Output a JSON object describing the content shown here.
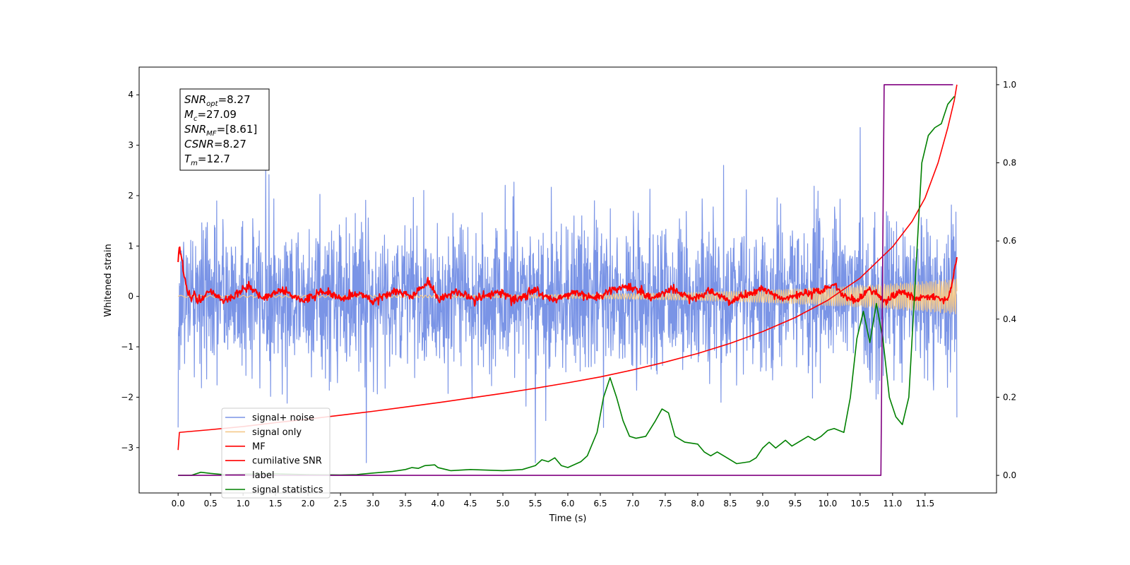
{
  "chart_data": {
    "type": "line",
    "xlabel": "Time (s)",
    "ylabel": "Whitened strain",
    "x_ticks": [
      "0.0",
      "0.5",
      "1.0",
      "1.5",
      "2.0",
      "2.5",
      "3.0",
      "3.5",
      "4.0",
      "4.5",
      "5.0",
      "5.5",
      "6.0",
      "6.5",
      "7.0",
      "7.5",
      "8.0",
      "8.5",
      "9.0",
      "9.5",
      "10.0",
      "10.5",
      "11.0",
      "11.5"
    ],
    "y_left_ticks": [
      "−3",
      "−2",
      "−1",
      "0",
      "1",
      "2",
      "3",
      "4"
    ],
    "y_right_ticks": [
      "0.0",
      "0.2",
      "0.4",
      "0.6",
      "0.8",
      "1.0"
    ],
    "xlim": [
      -0.6,
      12.6
    ],
    "ylim_left": [
      -3.9,
      4.55
    ],
    "ylim_right": [
      -0.045,
      1.045
    ],
    "annotation": [
      {
        "base": "SNR",
        "sub": "opt",
        "rest": "=8.27"
      },
      {
        "base": "M",
        "sub": "c",
        "rest": "=27.09"
      },
      {
        "base": "SNR",
        "sub": "MF",
        "rest": "=[8.61]"
      },
      {
        "base": "CSNR",
        "sub": "",
        "rest": "=8.27"
      },
      {
        "base": "T",
        "sub": "m",
        "rest": "=12.7"
      }
    ],
    "legend_position": "lower-left",
    "legend": [
      {
        "label": "signal+ noise",
        "color": "#7a94e6"
      },
      {
        "label": "signal only",
        "color": "#f5c98a"
      },
      {
        "label": "MF",
        "color": "#ff0000"
      },
      {
        "label": "cumilative SNR",
        "color": "#ff0000"
      },
      {
        "label": "label",
        "color": "#800080"
      },
      {
        "label": "signal statistics",
        "color": "#008000"
      }
    ],
    "series": [
      {
        "name": "signal+ noise",
        "axis": "left",
        "color": "#7a94e6",
        "style": "noise",
        "x_start": 0.0,
        "x_end": 11.99,
        "std": 0.75,
        "spikes": [
          [
            0.0,
            4.1
          ],
          [
            0.0,
            -2.6
          ],
          [
            1.35,
            2.7
          ],
          [
            2.9,
            -3.3
          ],
          [
            5.5,
            -3.3
          ],
          [
            6.55,
            -2.6
          ],
          [
            8.4,
            2.6
          ],
          [
            10.5,
            3.35
          ],
          [
            11.99,
            -3.3
          ],
          [
            11.99,
            -2.4
          ]
        ]
      },
      {
        "name": "signal only",
        "axis": "left",
        "color": "#f5c98a",
        "style": "chirp",
        "x_start": 0.0,
        "x_end": 11.99,
        "amp_start": 0.02,
        "amp_end": 0.35
      },
      {
        "name": "MF",
        "axis": "left",
        "color": "#ff0000",
        "style": "mf",
        "x_start": 0.0,
        "x_end": 11.99,
        "points": [
          [
            0.0,
            0.7
          ],
          [
            0.02,
            1.0
          ],
          [
            0.05,
            0.8
          ],
          [
            0.1,
            0.4
          ],
          [
            0.15,
            0.1
          ],
          [
            0.2,
            -0.05
          ],
          [
            0.25,
            0.1
          ],
          [
            0.3,
            -0.1
          ],
          [
            0.5,
            0.1
          ],
          [
            0.7,
            -0.1
          ],
          [
            0.9,
            0.05
          ],
          [
            1.1,
            0.2
          ],
          [
            1.3,
            -0.05
          ],
          [
            1.6,
            0.15
          ],
          [
            1.9,
            -0.1
          ],
          [
            2.2,
            0.1
          ],
          [
            2.5,
            -0.05
          ],
          [
            2.8,
            0.05
          ],
          [
            3.0,
            -0.1
          ],
          [
            3.3,
            0.1
          ],
          [
            3.6,
            0.0
          ],
          [
            3.85,
            0.3
          ],
          [
            4.0,
            -0.05
          ],
          [
            4.3,
            0.1
          ],
          [
            4.6,
            -0.05
          ],
          [
            4.9,
            0.1
          ],
          [
            5.2,
            -0.05
          ],
          [
            5.5,
            0.1
          ],
          [
            5.8,
            -0.1
          ],
          [
            6.1,
            0.1
          ],
          [
            6.4,
            -0.05
          ],
          [
            6.7,
            0.15
          ],
          [
            7.0,
            0.2
          ],
          [
            7.3,
            -0.05
          ],
          [
            7.6,
            0.15
          ],
          [
            7.9,
            -0.05
          ],
          [
            8.2,
            0.1
          ],
          [
            8.5,
            -0.1
          ],
          [
            8.8,
            0.05
          ],
          [
            9.0,
            0.15
          ],
          [
            9.3,
            -0.05
          ],
          [
            9.6,
            0.05
          ],
          [
            9.9,
            0.1
          ],
          [
            10.1,
            0.25
          ],
          [
            10.25,
            0.0
          ],
          [
            10.45,
            -0.1
          ],
          [
            10.65,
            0.15
          ],
          [
            10.9,
            -0.1
          ],
          [
            11.1,
            0.1
          ],
          [
            11.35,
            -0.05
          ],
          [
            11.6,
            0.0
          ],
          [
            11.85,
            -0.1
          ],
          [
            11.95,
            0.5
          ],
          [
            11.99,
            0.8
          ]
        ]
      },
      {
        "name": "cumilative SNR",
        "axis": "right",
        "color": "#ff0000",
        "style": "curve",
        "points": [
          [
            0.0,
            0.065
          ],
          [
            0.02,
            0.11
          ],
          [
            0.5,
            0.117
          ],
          [
            1.0,
            0.125
          ],
          [
            1.5,
            0.135
          ],
          [
            2.0,
            0.144
          ],
          [
            2.5,
            0.154
          ],
          [
            3.0,
            0.164
          ],
          [
            3.5,
            0.175
          ],
          [
            4.0,
            0.186
          ],
          [
            4.5,
            0.198
          ],
          [
            5.0,
            0.21
          ],
          [
            5.5,
            0.223
          ],
          [
            6.0,
            0.237
          ],
          [
            6.5,
            0.252
          ],
          [
            7.0,
            0.27
          ],
          [
            7.5,
            0.29
          ],
          [
            8.0,
            0.312
          ],
          [
            8.5,
            0.338
          ],
          [
            9.0,
            0.368
          ],
          [
            9.5,
            0.404
          ],
          [
            10.0,
            0.448
          ],
          [
            10.5,
            0.505
          ],
          [
            11.0,
            0.585
          ],
          [
            11.3,
            0.65
          ],
          [
            11.5,
            0.71
          ],
          [
            11.7,
            0.8
          ],
          [
            11.85,
            0.89
          ],
          [
            11.95,
            0.96
          ],
          [
            11.99,
            1.0
          ]
        ]
      },
      {
        "name": "label",
        "axis": "right",
        "color": "#800080",
        "style": "step",
        "points": [
          [
            0.0,
            0.0
          ],
          [
            10.82,
            0.0
          ],
          [
            10.87,
            1.0
          ],
          [
            11.93,
            1.0
          ]
        ]
      },
      {
        "name": "signal statistics",
        "axis": "right",
        "color": "#008000",
        "style": "curve",
        "points": [
          [
            0.0,
            0.0
          ],
          [
            0.2,
            0.0
          ],
          [
            0.35,
            0.008
          ],
          [
            0.5,
            0.005
          ],
          [
            0.7,
            0.002
          ],
          [
            1.0,
            0.003
          ],
          [
            1.5,
            0.004
          ],
          [
            2.0,
            0.002
          ],
          [
            2.5,
            0.001
          ],
          [
            2.75,
            0.002
          ],
          [
            3.0,
            0.006
          ],
          [
            3.3,
            0.01
          ],
          [
            3.5,
            0.015
          ],
          [
            3.6,
            0.02
          ],
          [
            3.7,
            0.018
          ],
          [
            3.8,
            0.025
          ],
          [
            3.95,
            0.027
          ],
          [
            4.0,
            0.02
          ],
          [
            4.2,
            0.012
          ],
          [
            4.5,
            0.015
          ],
          [
            5.0,
            0.012
          ],
          [
            5.3,
            0.015
          ],
          [
            5.5,
            0.025
          ],
          [
            5.6,
            0.04
          ],
          [
            5.7,
            0.035
          ],
          [
            5.8,
            0.045
          ],
          [
            5.9,
            0.025
          ],
          [
            6.0,
            0.02
          ],
          [
            6.2,
            0.035
          ],
          [
            6.3,
            0.05
          ],
          [
            6.45,
            0.11
          ],
          [
            6.55,
            0.2
          ],
          [
            6.65,
            0.25
          ],
          [
            6.75,
            0.2
          ],
          [
            6.85,
            0.14
          ],
          [
            6.95,
            0.1
          ],
          [
            7.05,
            0.095
          ],
          [
            7.2,
            0.1
          ],
          [
            7.35,
            0.14
          ],
          [
            7.45,
            0.17
          ],
          [
            7.55,
            0.16
          ],
          [
            7.65,
            0.1
          ],
          [
            7.8,
            0.085
          ],
          [
            8.0,
            0.08
          ],
          [
            8.1,
            0.06
          ],
          [
            8.2,
            0.05
          ],
          [
            8.3,
            0.06
          ],
          [
            8.45,
            0.045
          ],
          [
            8.6,
            0.03
          ],
          [
            8.8,
            0.035
          ],
          [
            8.9,
            0.045
          ],
          [
            9.0,
            0.07
          ],
          [
            9.1,
            0.085
          ],
          [
            9.2,
            0.07
          ],
          [
            9.35,
            0.09
          ],
          [
            9.45,
            0.075
          ],
          [
            9.6,
            0.09
          ],
          [
            9.7,
            0.1
          ],
          [
            9.8,
            0.09
          ],
          [
            9.9,
            0.1
          ],
          [
            10.0,
            0.115
          ],
          [
            10.1,
            0.12
          ],
          [
            10.25,
            0.11
          ],
          [
            10.35,
            0.2
          ],
          [
            10.45,
            0.35
          ],
          [
            10.55,
            0.42
          ],
          [
            10.65,
            0.34
          ],
          [
            10.75,
            0.44
          ],
          [
            10.85,
            0.35
          ],
          [
            10.95,
            0.2
          ],
          [
            11.05,
            0.15
          ],
          [
            11.15,
            0.13
          ],
          [
            11.25,
            0.2
          ],
          [
            11.35,
            0.5
          ],
          [
            11.45,
            0.8
          ],
          [
            11.55,
            0.87
          ],
          [
            11.65,
            0.89
          ],
          [
            11.75,
            0.9
          ],
          [
            11.85,
            0.95
          ],
          [
            11.95,
            0.97
          ]
        ]
      }
    ]
  }
}
